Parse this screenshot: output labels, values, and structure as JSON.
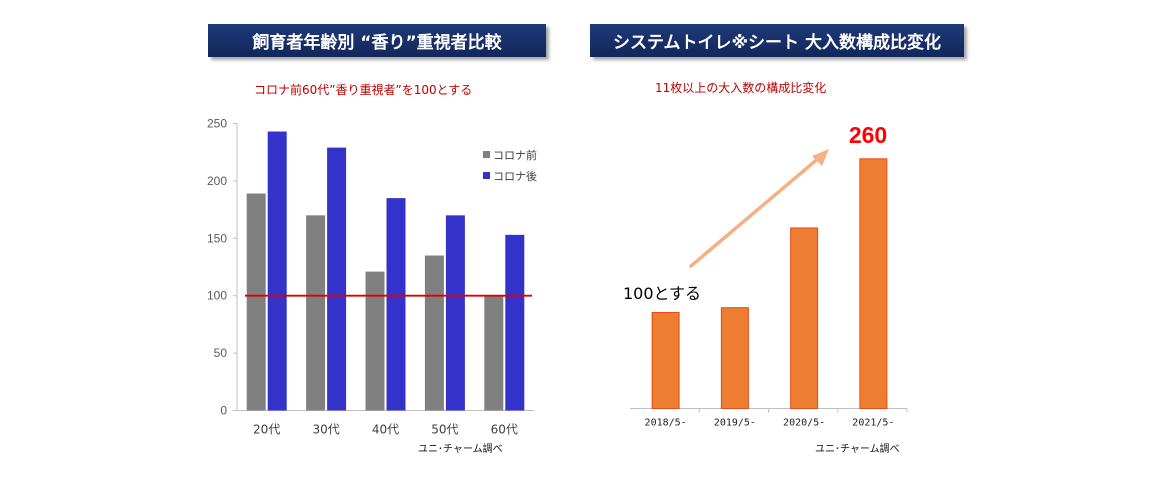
{
  "left_panel": {
    "title": "飼育者年齢別 “香り”重視者比較",
    "subtitle": "コロナ前60代”香り重視者”を100とする",
    "source": "ユニ･チャーム調べ"
  },
  "right_panel": {
    "title": "システムトイレ※シート 大入数構成比変化",
    "subtitle": "11枚以上の大入数の構成比変化",
    "source": "ユニ･チャーム調べ",
    "baseline_note": "100とする",
    "highlight_value": "260"
  },
  "colors": {
    "title_bg": "#1a3370",
    "before": "#808080",
    "after": "#3333cc",
    "reference_line": "#e00000",
    "bar_orange": "#ed7d31",
    "arrow": "#f4b183",
    "highlight": "#ff0000"
  },
  "chart_data": [
    {
      "type": "bar",
      "categories": [
        "20代",
        "30代",
        "40代",
        "50代",
        "60代"
      ],
      "series": [
        {
          "name": "コロナ前",
          "values": [
            189,
            170,
            121,
            135,
            100
          ]
        },
        {
          "name": "コロナ後",
          "values": [
            243,
            229,
            185,
            170,
            153
          ]
        }
      ],
      "yticks": [
        "0",
        "50",
        "100",
        "150",
        "200",
        "250"
      ],
      "ylim": [
        0,
        250
      ],
      "reference_line": 100,
      "legend_position": "top-right",
      "grid": false
    },
    {
      "type": "bar",
      "categories": [
        "2018/5-",
        "2019/5-",
        "2020/5-",
        "2021/5-"
      ],
      "values": [
        100,
        105,
        188,
        260
      ],
      "ylim": [
        0,
        290
      ],
      "grid": false
    }
  ]
}
